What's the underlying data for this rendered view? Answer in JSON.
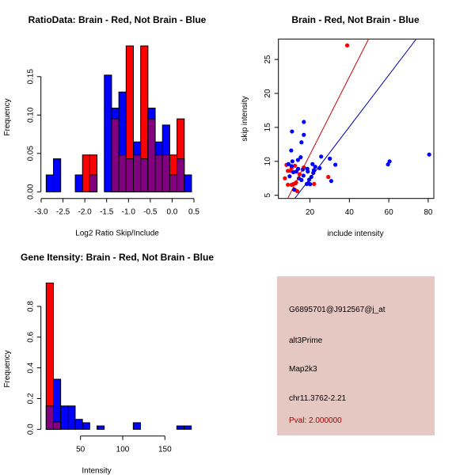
{
  "chart_data": [
    {
      "type": "bar",
      "subtype": "overlaid-histogram",
      "title": "RatioData: Brain - Red, Not Brain - Blue",
      "xlabel": "Log2 Ratio Skip/Include",
      "ylabel": "Frequency",
      "xlim": [
        -3.0,
        0.5
      ],
      "ylim": [
        0,
        0.19
      ],
      "xticks": [
        "-3.0",
        "-2.5",
        "-2.0",
        "-1.5",
        "-1.0",
        "-0.5",
        "0.0",
        "0.5"
      ],
      "yticks": [
        "0.00",
        "0.05",
        "0.10",
        "0.15"
      ],
      "bin_start": -2.885,
      "bin_width": 0.1665,
      "series": [
        {
          "name": "Brain",
          "color": "#ff0000",
          "values": [
            0,
            0,
            0,
            0,
            0,
            0.048,
            0.048,
            0,
            0,
            0.095,
            0.048,
            0.19,
            0.048,
            0.19,
            0.095,
            0.048,
            0.048,
            0.048,
            0.095,
            0
          ]
        },
        {
          "name": "Not Brain",
          "color": "#0000ff",
          "values": [
            0.022,
            0.043,
            0,
            0,
            0.022,
            0,
            0.022,
            0,
            0.152,
            0.109,
            0.13,
            0.043,
            0.065,
            0.043,
            0.109,
            0.065,
            0.087,
            0.022,
            0.043,
            0.022
          ]
        }
      ],
      "overlap_color": "#800080"
    },
    {
      "type": "scatter",
      "title": "Brain - Red, Not Brain - Blue",
      "xlabel": "include intensity",
      "ylabel": "skip intensity",
      "xlim": [
        4.7,
        83.2
      ],
      "ylim": [
        4.53,
        28.0
      ],
      "xticks": [
        "20",
        "40",
        "60",
        "80"
      ],
      "yticks": [
        "5",
        "10",
        "15",
        "20",
        "25"
      ],
      "series": [
        {
          "name": "Brain",
          "color": "#ff0000",
          "points": [
            [
              38.9,
              27.07
            ],
            [
              29.3,
              7.7
            ],
            [
              22.1,
              6.67
            ],
            [
              7.3,
              7.5
            ],
            [
              8.1,
              9.47
            ],
            [
              8.8,
              8.6
            ],
            [
              10,
              8.6
            ],
            [
              8.8,
              6.55
            ],
            [
              10.7,
              6.55
            ],
            [
              11.7,
              6.67
            ],
            [
              12.7,
              6.75
            ],
            [
              13,
              6.9
            ],
            [
              12.4,
              9.35
            ],
            [
              13.6,
              5.6
            ],
            [
              12.4,
              5.8
            ],
            [
              14.7,
              8.1
            ],
            [
              16.9,
              9.1
            ],
            [
              10.7,
              9.0
            ]
          ],
          "fit": {
            "intercept": -0.45,
            "slope": 0.572,
            "color": "#cc0000"
          }
        },
        {
          "name": "Not Brain",
          "color": "#0000ff",
          "points": [
            [
              16.9,
              15.8
            ],
            [
              10.9,
              14.4
            ],
            [
              16.9,
              13.9
            ],
            [
              15.7,
              12.8
            ],
            [
              10.5,
              11.6
            ],
            [
              15.3,
              10.6
            ],
            [
              25.7,
              10.7
            ],
            [
              30.1,
              10.4
            ],
            [
              32.9,
              9.5
            ],
            [
              21.3,
              9.6
            ],
            [
              13.9,
              10.2
            ],
            [
              11.1,
              10.0
            ],
            [
              9.1,
              9.6
            ],
            [
              10.7,
              9.3
            ],
            [
              24.9,
              9.0
            ],
            [
              22.7,
              9.2
            ],
            [
              22,
              8.7
            ],
            [
              18.7,
              8.9
            ],
            [
              18.9,
              8.5
            ],
            [
              16.4,
              8.8
            ],
            [
              14,
              8.9
            ],
            [
              13.1,
              8.5
            ],
            [
              11.6,
              8.4
            ],
            [
              21.7,
              8.3
            ],
            [
              16.7,
              7.9
            ],
            [
              20.7,
              7.7
            ],
            [
              19.6,
              7.3
            ],
            [
              15.7,
              7.25
            ],
            [
              14.4,
              7.5
            ],
            [
              9.7,
              7.8
            ],
            [
              30.8,
              7.1
            ],
            [
              19.3,
              6.75
            ],
            [
              18.4,
              6.67
            ],
            [
              20.1,
              6.63
            ],
            [
              11.9,
              5.85
            ],
            [
              59.6,
              9.55
            ],
            [
              60.4,
              10.0
            ],
            [
              80.5,
              11.0
            ]
          ],
          "fit": {
            "intercept": -0.16,
            "slope": 0.381,
            "color": "#0000aa"
          }
        }
      ]
    },
    {
      "type": "bar",
      "subtype": "overlaid-histogram",
      "title": "Gene Itensity: Brain - Red, Not Brain - Blue",
      "xlabel": "Intensity",
      "ylabel": "Frequency",
      "xlim": [
        0,
        185
      ],
      "ylim": [
        0,
        0.95
      ],
      "xticks": [
        "50",
        "100",
        "150"
      ],
      "yticks": [
        "0.0",
        "0.2",
        "0.4",
        "0.6",
        "0.8"
      ],
      "bin_start": 9.3,
      "bin_width": 8.6,
      "series": [
        {
          "name": "Brain",
          "color": "#ff0000",
          "values": [
            0.952,
            0.048,
            0,
            0,
            0,
            0,
            0,
            0,
            0,
            0,
            0,
            0,
            0,
            0,
            0,
            0,
            0,
            0,
            0,
            0
          ]
        },
        {
          "name": "Not Brain",
          "color": "#0000ff",
          "values": [
            0.152,
            0.326,
            0.152,
            0.152,
            0.065,
            0.043,
            0,
            0.022,
            0,
            0,
            0,
            0,
            0.043,
            0,
            0,
            0,
            0,
            0,
            0.022,
            0.022
          ]
        }
      ],
      "overlap_color": "#800080"
    }
  ],
  "info": {
    "background": "#e6c8c2",
    "probe": "G6895701@J912567@j_at",
    "event": "alt3Prime",
    "gene": "Map2k3",
    "location": "chr11.3762-2.21",
    "pval": "Pval: 2.000000",
    "pval_color": "#a00000"
  }
}
